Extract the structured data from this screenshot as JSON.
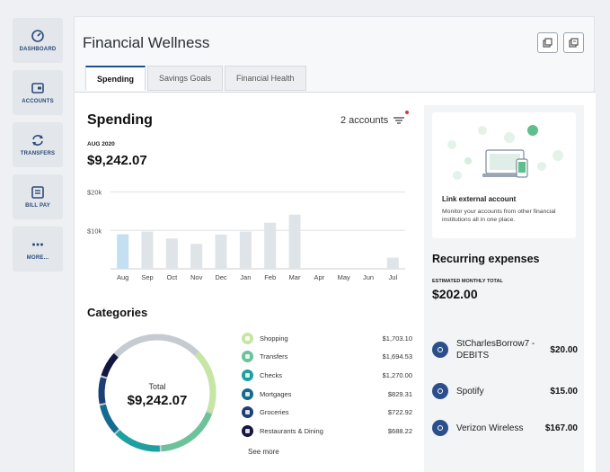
{
  "sidebar": {
    "items": [
      {
        "label": "DASHBOARD",
        "icon": "dashboard-icon"
      },
      {
        "label": "ACCOUNTS",
        "icon": "accounts-icon"
      },
      {
        "label": "TRANSFERS",
        "icon": "transfers-icon"
      },
      {
        "label": "BILL PAY",
        "icon": "bill-pay-icon"
      },
      {
        "label": "MORE...",
        "icon": "more-icon"
      }
    ]
  },
  "header": {
    "title": "Financial Wellness"
  },
  "tabs": [
    {
      "label": "Spending",
      "active": true
    },
    {
      "label": "Savings Goals",
      "active": false
    },
    {
      "label": "Financial Health",
      "active": false
    }
  ],
  "spending": {
    "title": "Spending",
    "accounts": "2 accounts",
    "period": "AUG 2020",
    "amount": "$9,242.07"
  },
  "chart_data": {
    "type": "bar",
    "categories": [
      "Aug",
      "Sep",
      "Oct",
      "Nov",
      "Dec",
      "Jan",
      "Feb",
      "Mar",
      "Apr",
      "May",
      "Jun",
      "Jul"
    ],
    "values": [
      9000,
      9700,
      7900,
      6500,
      8900,
      9700,
      12000,
      14100,
      0,
      0,
      0,
      2900
    ],
    "ytick_labels": [
      "$20k",
      "$10k"
    ],
    "ylim": [
      0,
      22000
    ],
    "highlight_index": 0,
    "colors": {
      "highlight": "#c3e0f2",
      "bar": "#dfe4e8"
    }
  },
  "categories": {
    "title": "Categories",
    "total_label": "Total",
    "total": "$9,242.07",
    "items": [
      {
        "name": "Shopping",
        "amount": "$1,703.10",
        "value": 1703.1,
        "color": "#c6e6a4"
      },
      {
        "name": "Transfers",
        "amount": "$1,694.53",
        "value": 1694.53,
        "color": "#6cc29a"
      },
      {
        "name": "Checks",
        "amount": "$1,270.00",
        "value": 1270.0,
        "color": "#1ea0a0"
      },
      {
        "name": "Mortgages",
        "amount": "$829.31",
        "value": 829.31,
        "color": "#146a8f"
      },
      {
        "name": "Groceries",
        "amount": "$722.92",
        "value": 722.92,
        "color": "#1c3f75"
      },
      {
        "name": "Restaurants & Dining",
        "amount": "$688.22",
        "value": 688.22,
        "color": "#14163f"
      }
    ],
    "other_color": "#c5cbd1",
    "see_more": "See more"
  },
  "link_account": {
    "title": "Link external account",
    "description": "Monitor your accounts from other financial institutions all in one place."
  },
  "recurring": {
    "title": "Recurring expenses",
    "label": "ESTIMATED MONTHLY TOTAL",
    "total": "$202.00",
    "items": [
      {
        "name": "StCharlesBorrow7 - DEBITS",
        "amount": "$20.00"
      },
      {
        "name": "Spotify",
        "amount": "$15.00"
      },
      {
        "name": "Verizon Wireless",
        "amount": "$167.00"
      }
    ]
  }
}
